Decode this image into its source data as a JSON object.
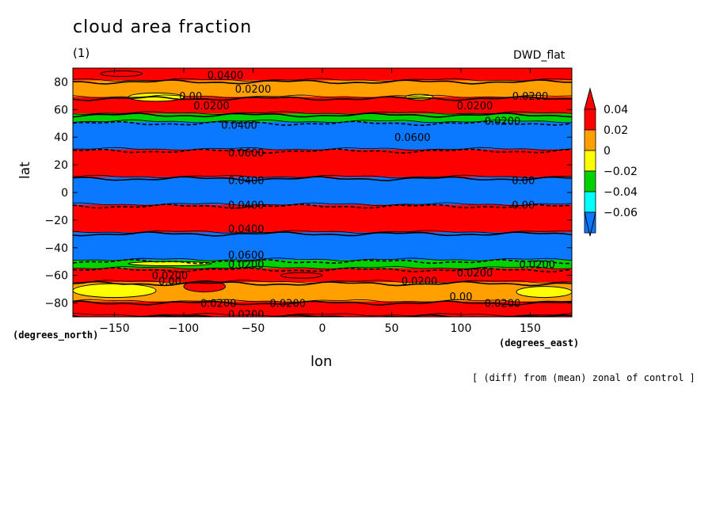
{
  "chart_data": {
    "type": "heatmap",
    "title": "cloud area fraction",
    "subtitle": "(1)",
    "model_label": "DWD_flat",
    "xlabel": "lon",
    "ylabel": "lat",
    "x_unit": "(degrees_east)",
    "y_unit": "(degrees_north)",
    "note": "[ (diff) from (mean) zonal of control ]",
    "xlim": [
      -180,
      180
    ],
    "ylim": [
      -90,
      90
    ],
    "x_ticks": [
      -150,
      -100,
      -50,
      0,
      50,
      100,
      150
    ],
    "y_ticks": [
      -80,
      -60,
      -40,
      -20,
      0,
      20,
      40,
      60,
      80
    ],
    "colorbar": {
      "levels": [
        -0.06,
        -0.04,
        -0.02,
        0,
        0.02,
        0.04
      ],
      "labels": [
        "0.04",
        "0.02",
        "0",
        "−0.02",
        "−0.04",
        "−0.06"
      ],
      "colors": [
        "#0a78ff",
        "#00ffff",
        "#00d200",
        "#ffff00",
        "#ffa000",
        "#ff0000"
      ]
    },
    "zonal_bands": [
      {
        "lat": [
          80,
          90
        ],
        "value": 0.03
      },
      {
        "lat": [
          68,
          80
        ],
        "value": 0.01
      },
      {
        "lat": [
          56,
          68
        ],
        "value": 0.03
      },
      {
        "lat": [
          50,
          56
        ],
        "value": -0.03
      },
      {
        "lat": [
          30,
          50
        ],
        "value": -0.07
      },
      {
        "lat": [
          10,
          30
        ],
        "value": 0.05
      },
      {
        "lat": [
          -10,
          10
        ],
        "value": -0.07
      },
      {
        "lat": [
          -30,
          -10
        ],
        "value": 0.05
      },
      {
        "lat": [
          -50,
          -30
        ],
        "value": -0.07
      },
      {
        "lat": [
          -56,
          -50
        ],
        "value": -0.03
      },
      {
        "lat": [
          -66,
          -56
        ],
        "value": 0.03
      },
      {
        "lat": [
          -80,
          -66
        ],
        "value": 0.01
      },
      {
        "lat": [
          -90,
          -80
        ],
        "value": 0.03
      }
    ],
    "patches": [
      {
        "lon": [
          -140,
          -100
        ],
        "lat": [
          66,
          72
        ],
        "value": -0.01
      },
      {
        "lon": [
          60,
          80
        ],
        "lat": [
          67,
          71
        ],
        "value": -0.01
      },
      {
        "lon": [
          -160,
          -130
        ],
        "lat": [
          84,
          88
        ],
        "value": 0.05
      },
      {
        "lon": [
          -100,
          -70
        ],
        "lat": [
          -72,
          -64
        ],
        "value": 0.03
      },
      {
        "lon": [
          -180,
          -120
        ],
        "lat": [
          -76,
          -66
        ],
        "value": -0.01
      },
      {
        "lon": [
          140,
          180
        ],
        "lat": [
          -76,
          -68
        ],
        "value": -0.01
      },
      {
        "lon": [
          -30,
          0
        ],
        "lat": [
          -62,
          -58
        ],
        "value": 0.05
      },
      {
        "lon": [
          -140,
          -80
        ],
        "lat": [
          -53,
          -50
        ],
        "value": -0.01
      }
    ],
    "contour_labels": [
      {
        "text": "0.0400",
        "lon": -70,
        "lat": 85
      },
      {
        "text": "0.0200",
        "lon": -50,
        "lat": 75
      },
      {
        "text": "0.00",
        "lon": -95,
        "lat": 70
      },
      {
        "text": "0.0200",
        "lon": -80,
        "lat": 63
      },
      {
        "text": "0.0200",
        "lon": 110,
        "lat": 63
      },
      {
        "text": "0.0200",
        "lon": 150,
        "lat": 70
      },
      {
        "text": "0.0200",
        "lon": 130,
        "lat": 52
      },
      {
        "text": "0.0400",
        "lon": -60,
        "lat": 49
      },
      {
        "text": "0.0600",
        "lon": 65,
        "lat": 40
      },
      {
        "text": "0.0600",
        "lon": -55,
        "lat": 29
      },
      {
        "text": "0.0400",
        "lon": -55,
        "lat": 9
      },
      {
        "text": "0.00",
        "lon": 145,
        "lat": 9
      },
      {
        "text": "0.0400",
        "lon": -55,
        "lat": -9
      },
      {
        "text": "0.00",
        "lon": 145,
        "lat": -9
      },
      {
        "text": "0.0400",
        "lon": -55,
        "lat": -26
      },
      {
        "text": "0.0600",
        "lon": -55,
        "lat": -45
      },
      {
        "text": "0.0200",
        "lon": -55,
        "lat": -52
      },
      {
        "text": "0.0200",
        "lon": 155,
        "lat": -52
      },
      {
        "text": "0.0200",
        "lon": -110,
        "lat": -60
      },
      {
        "text": "0.0200",
        "lon": 70,
        "lat": -64
      },
      {
        "text": "0.0200",
        "lon": 110,
        "lat": -58
      },
      {
        "text": "0.00",
        "lon": -110,
        "lat": -64
      },
      {
        "text": "0.00",
        "lon": 100,
        "lat": -75
      },
      {
        "text": "0.0200",
        "lon": -75,
        "lat": -80
      },
      {
        "text": "0.0200",
        "lon": -25,
        "lat": -80
      },
      {
        "text": "0.0200",
        "lon": 130,
        "lat": -80
      },
      {
        "text": "0.0200",
        "lon": -55,
        "lat": -88
      }
    ]
  }
}
